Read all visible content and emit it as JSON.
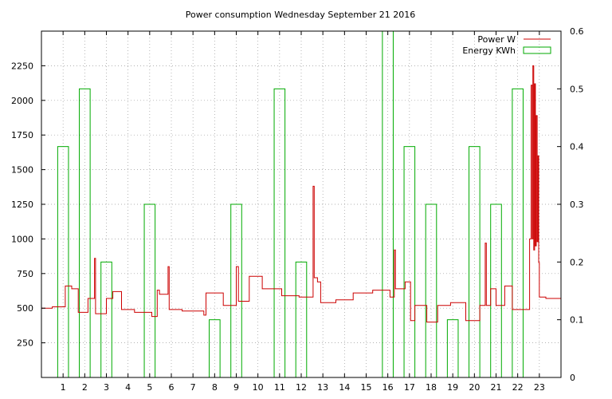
{
  "chart_data": {
    "type": "line",
    "title": "Power consumption Wednesday September 21 2016",
    "xlabel": "",
    "ylabel": "",
    "y2label": "",
    "grid": true,
    "legend_position": "top-right",
    "xlim": [
      0,
      24
    ],
    "ylim": [
      0,
      2500
    ],
    "y2lim": [
      0,
      0.6
    ],
    "x_ticks": [
      1,
      2,
      3,
      4,
      5,
      6,
      7,
      8,
      9,
      10,
      11,
      12,
      13,
      14,
      15,
      16,
      17,
      18,
      19,
      20,
      21,
      22,
      23
    ],
    "y_ticks": [
      250,
      500,
      750,
      1000,
      1250,
      1500,
      1750,
      2000,
      2250
    ],
    "y2_ticks": [
      0,
      0.1,
      0.2,
      0.3,
      0.4,
      0.5,
      0.6
    ],
    "series": [
      {
        "name": "Power W",
        "color": "#cc0000",
        "axis": "left",
        "style": "steps",
        "points": [
          [
            0.0,
            500
          ],
          [
            0.5,
            510
          ],
          [
            1.1,
            660
          ],
          [
            1.4,
            640
          ],
          [
            1.7,
            470
          ],
          [
            2.15,
            570
          ],
          [
            2.45,
            860
          ],
          [
            2.5,
            460
          ],
          [
            3.0,
            570
          ],
          [
            3.3,
            620
          ],
          [
            3.7,
            490
          ],
          [
            4.3,
            470
          ],
          [
            5.1,
            440
          ],
          [
            5.35,
            630
          ],
          [
            5.45,
            600
          ],
          [
            5.85,
            800
          ],
          [
            5.9,
            490
          ],
          [
            6.5,
            480
          ],
          [
            7.5,
            450
          ],
          [
            7.6,
            610
          ],
          [
            8.4,
            520
          ],
          [
            9.0,
            800
          ],
          [
            9.1,
            550
          ],
          [
            9.6,
            730
          ],
          [
            10.2,
            640
          ],
          [
            11.1,
            590
          ],
          [
            11.9,
            580
          ],
          [
            12.55,
            1380
          ],
          [
            12.6,
            720
          ],
          [
            12.75,
            690
          ],
          [
            12.9,
            540
          ],
          [
            13.6,
            560
          ],
          [
            14.4,
            610
          ],
          [
            15.3,
            630
          ],
          [
            16.1,
            580
          ],
          [
            16.3,
            920
          ],
          [
            16.35,
            640
          ],
          [
            16.8,
            690
          ],
          [
            17.05,
            410
          ],
          [
            17.25,
            520
          ],
          [
            17.8,
            400
          ],
          [
            18.3,
            520
          ],
          [
            18.9,
            540
          ],
          [
            19.6,
            410
          ],
          [
            20.25,
            520
          ],
          [
            20.5,
            970
          ],
          [
            20.55,
            520
          ],
          [
            20.75,
            640
          ],
          [
            21.0,
            520
          ],
          [
            21.4,
            660
          ],
          [
            21.75,
            490
          ],
          [
            22.55,
            1000
          ],
          [
            22.62,
            2110
          ],
          [
            22.67,
            1000
          ],
          [
            22.7,
            2250
          ],
          [
            22.74,
            920
          ],
          [
            22.78,
            2120
          ],
          [
            22.82,
            950
          ],
          [
            22.86,
            1890
          ],
          [
            22.9,
            980
          ],
          [
            22.94,
            1600
          ],
          [
            22.97,
            830
          ],
          [
            23.0,
            580
          ],
          [
            23.3,
            570
          ],
          [
            24.0,
            570
          ]
        ]
      },
      {
        "name": "Energy KWh",
        "color": "#00aa00",
        "axis": "right",
        "style": "boxes",
        "x": [
          1,
          2,
          3,
          4,
          5,
          6,
          7,
          8,
          9,
          10,
          11,
          12,
          13,
          14,
          15,
          16,
          17,
          18,
          19,
          20,
          21,
          22,
          23
        ],
        "values": [
          0.4,
          0.5,
          0.2,
          0,
          0.3,
          0,
          0,
          0.1,
          0.3,
          0,
          0.5,
          0.2,
          0,
          0,
          0,
          0.6,
          0.4,
          0.3,
          0.1,
          0.4,
          0.3,
          0.5,
          0
        ]
      }
    ]
  }
}
